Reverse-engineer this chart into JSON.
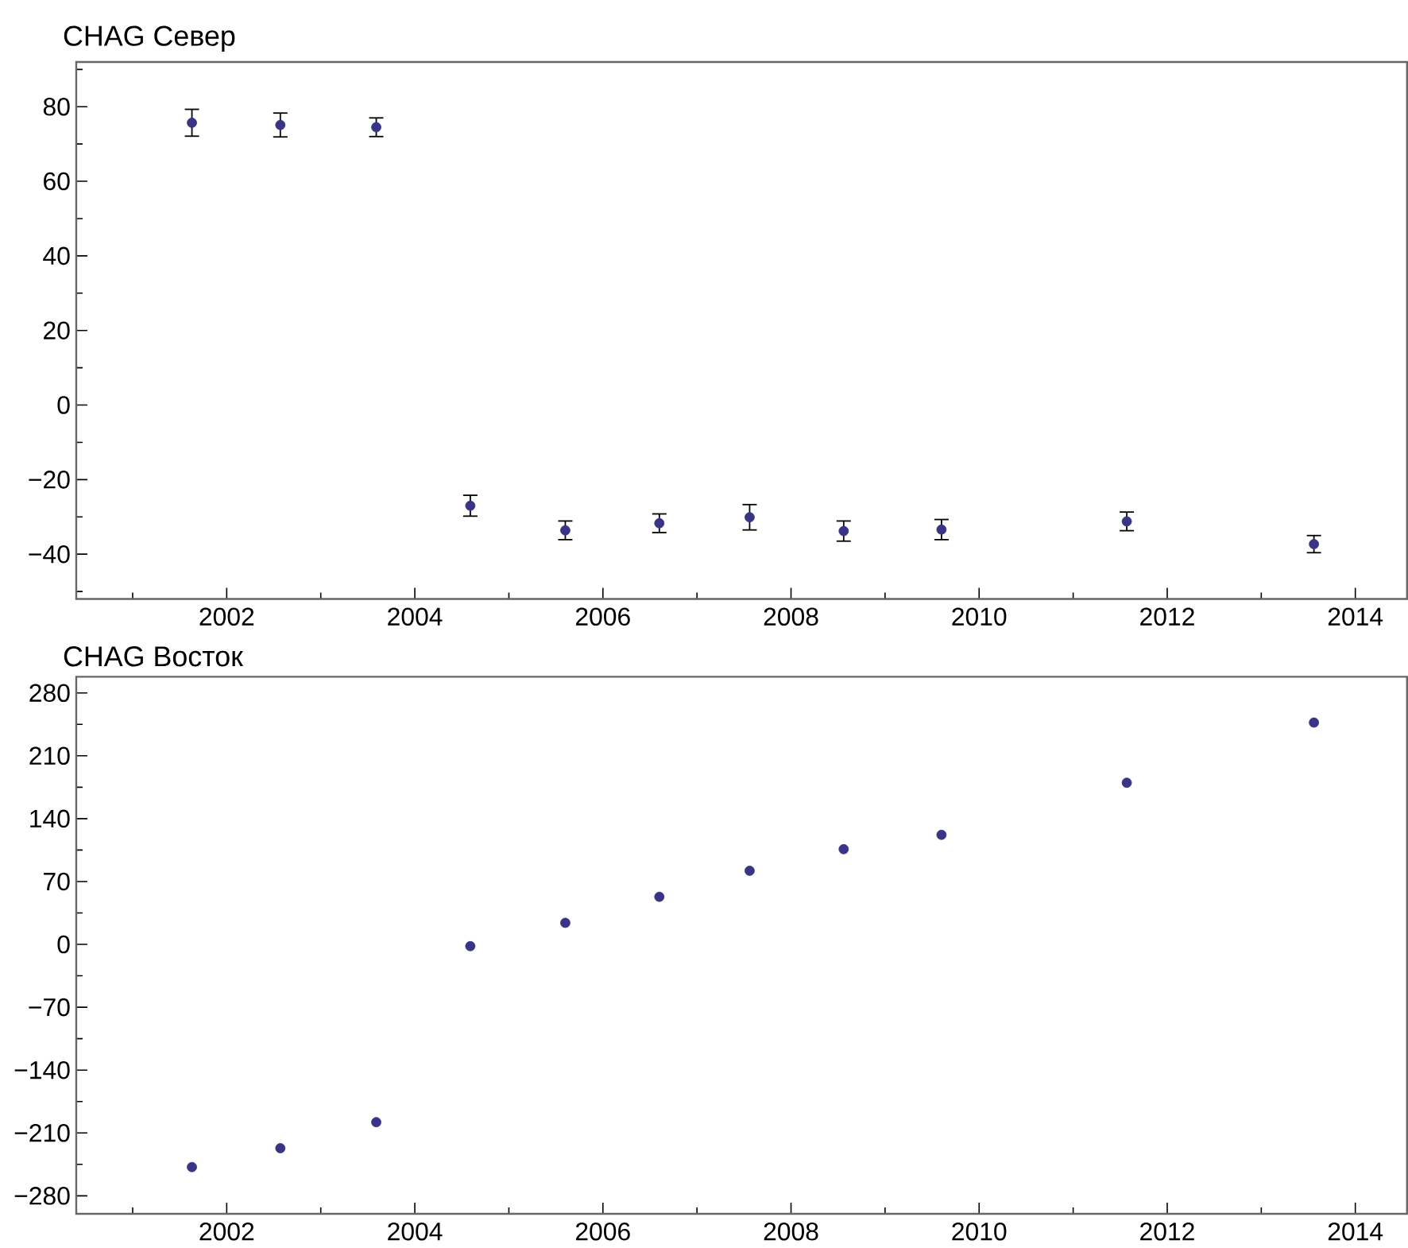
{
  "chart_data": [
    {
      "type": "scatter",
      "title": "CHAG Север",
      "color": "#3a3486",
      "marker": "circle",
      "x": [
        2001.63,
        2002.57,
        2003.59,
        2004.59,
        2005.6,
        2006.6,
        2007.56,
        2008.56,
        2009.6,
        2011.57,
        2013.56
      ],
      "values": [
        75.7,
        75.1,
        74.5,
        -27.0,
        -33.6,
        -31.7,
        -30.1,
        -33.8,
        -33.4,
        -31.2,
        -37.3
      ],
      "errors": [
        3.6,
        3.2,
        2.5,
        2.8,
        2.5,
        2.5,
        3.4,
        2.7,
        2.7,
        2.5,
        2.3
      ],
      "xlim": [
        2000.4,
        2014.55
      ],
      "ylim": [
        -52,
        92
      ],
      "xticks": [
        {
          "value": 2001,
          "label": null
        },
        2002,
        {
          "value": 2003,
          "label": null
        },
        2004,
        {
          "value": 2005,
          "label": null
        },
        2006,
        {
          "value": 2007,
          "label": null
        },
        2008,
        {
          "value": 2009,
          "label": null
        },
        2010,
        {
          "value": 2011,
          "label": null
        },
        2012,
        {
          "value": 2013,
          "label": null
        },
        2014
      ],
      "yticks": [
        {
          "value": -50,
          "label": null
        },
        {
          "value": -40,
          "label": "−40"
        },
        {
          "value": -30,
          "label": null
        },
        {
          "value": -20,
          "label": "−20"
        },
        {
          "value": -10,
          "label": null
        },
        0,
        {
          "value": 10,
          "label": null
        },
        20,
        {
          "value": 30,
          "label": null
        },
        40,
        {
          "value": 50,
          "label": null
        },
        60,
        {
          "value": 70,
          "label": null
        },
        80,
        {
          "value": 90,
          "label": null
        }
      ]
    },
    {
      "type": "scatter",
      "title": "CHAG Восток",
      "color": "#3a3486",
      "marker": "circle",
      "x": [
        2001.63,
        2002.57,
        2003.59,
        2004.59,
        2005.6,
        2006.6,
        2007.56,
        2008.56,
        2009.6,
        2011.57,
        2013.56
      ],
      "values": [
        -248,
        -227,
        -198,
        -2,
        24,
        53,
        82,
        106,
        122,
        180,
        247
      ],
      "xlim": [
        2000.4,
        2014.55
      ],
      "ylim": [
        -300,
        298
      ],
      "xticks": [
        {
          "value": 2001,
          "label": null
        },
        2002,
        {
          "value": 2003,
          "label": null
        },
        2004,
        {
          "value": 2005,
          "label": null
        },
        2006,
        {
          "value": 2007,
          "label": null
        },
        2008,
        {
          "value": 2009,
          "label": null
        },
        2010,
        {
          "value": 2011,
          "label": null
        },
        2012,
        {
          "value": 2013,
          "label": null
        },
        2014
      ],
      "yticks": [
        {
          "value": -280,
          "label": "−280"
        },
        {
          "value": -245,
          "label": null
        },
        {
          "value": -210,
          "label": "−210"
        },
        {
          "value": -175,
          "label": null
        },
        {
          "value": -140,
          "label": "−140"
        },
        {
          "value": -105,
          "label": null
        },
        {
          "value": -70,
          "label": "−70"
        },
        {
          "value": -35,
          "label": null
        },
        0,
        {
          "value": 35,
          "label": null
        },
        70,
        {
          "value": 105,
          "label": null
        },
        140,
        {
          "value": 175,
          "label": null
        },
        210,
        {
          "value": 245,
          "label": null
        },
        280
      ]
    }
  ]
}
